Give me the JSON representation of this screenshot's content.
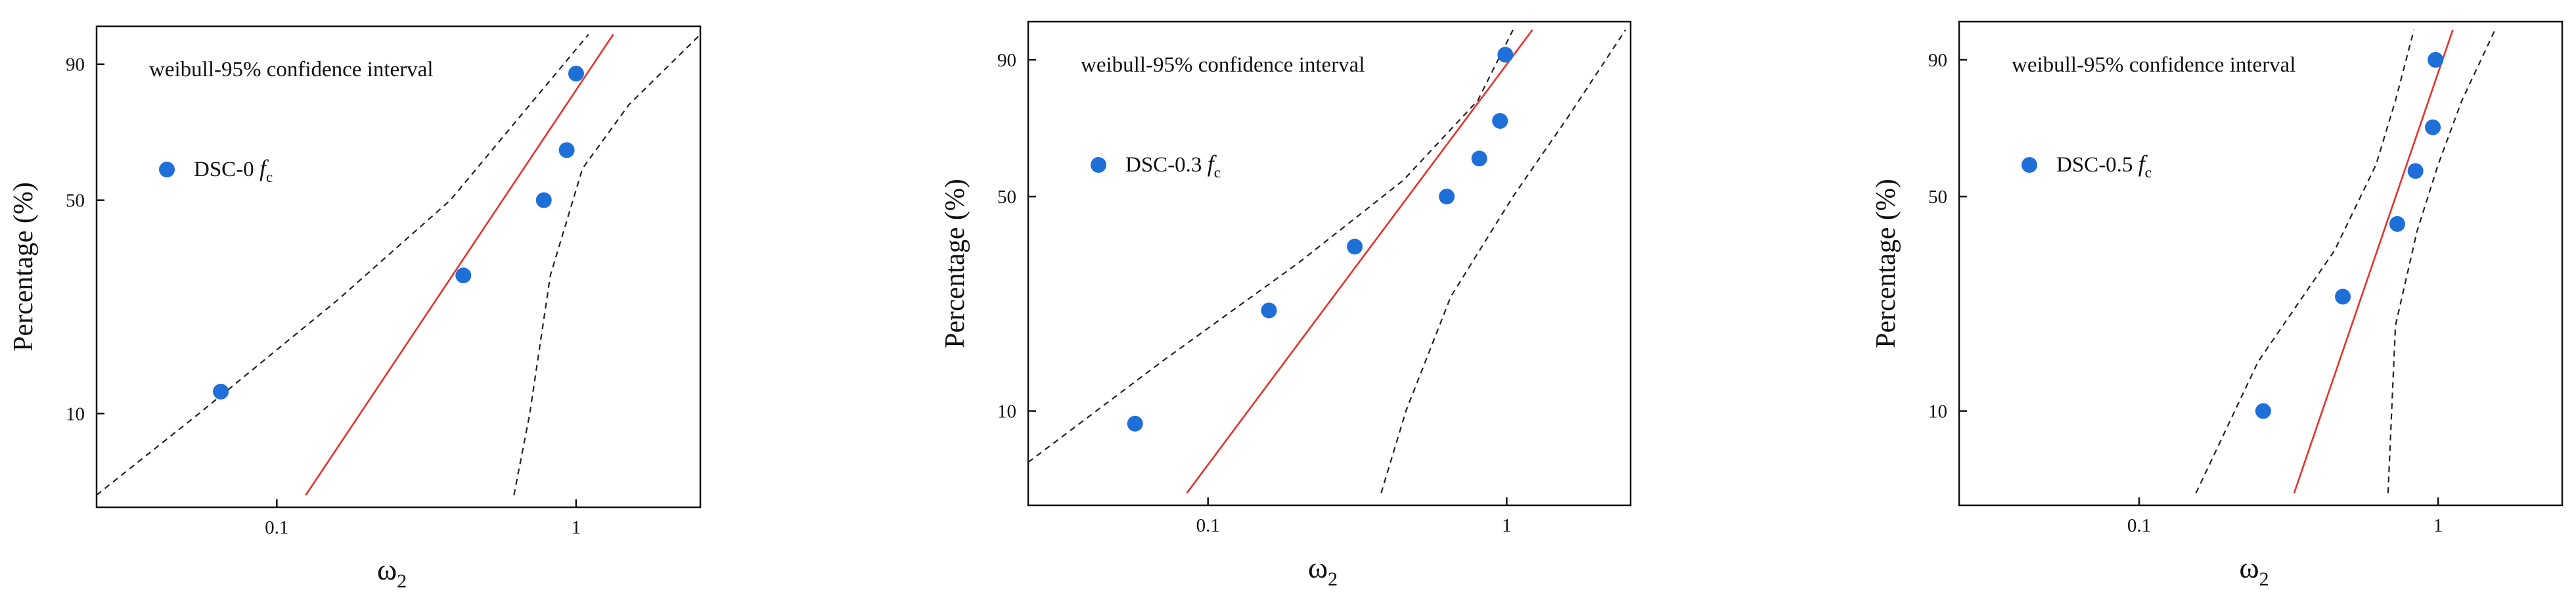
{
  "chart_data": [
    {
      "type": "scatter",
      "title": "",
      "xscale": "log",
      "yscale": "weibull-probability",
      "xlim": [
        0.025,
        2.6
      ],
      "ylim": [
        4.5,
        96
      ],
      "xticks": [
        {
          "value": 0.1,
          "label": "0.1"
        },
        {
          "value": 1,
          "label": "1"
        }
      ],
      "yticks": [
        {
          "value": 10,
          "label": "10"
        },
        {
          "value": 50,
          "label": "50"
        },
        {
          "value": 90,
          "label": "90"
        }
      ],
      "xlabel": {
        "main": "ω",
        "sub": "2"
      },
      "ylabel": "Percentage (%)",
      "annotation": "weibull-95% confidence interval",
      "legend": {
        "prefix": "DSC-0 ",
        "italic": "f",
        "sub": "c",
        "location": "upper-left"
      },
      "colors": {
        "points": "#1f6fd9",
        "fit": "#e8302a",
        "ci": "#222222"
      },
      "points": [
        {
          "x": 0.065,
          "y": 12.0
        },
        {
          "x": 0.42,
          "y": 30.0
        },
        {
          "x": 0.78,
          "y": 50.0
        },
        {
          "x": 0.93,
          "y": 66.0
        },
        {
          "x": 1.0,
          "y": 88.0
        }
      ],
      "fit_line": [
        {
          "x": 0.125,
          "y": 5.0
        },
        {
          "x": 1.33,
          "y": 95.0
        }
      ],
      "ci_lower": [
        {
          "x": 0.025,
          "y": 5.0
        },
        {
          "x": 0.055,
          "y": 10.0
        },
        {
          "x": 0.16,
          "y": 25.0
        },
        {
          "x": 0.38,
          "y": 50.0
        },
        {
          "x": 0.7,
          "y": 80.0
        },
        {
          "x": 1.1,
          "y": 95.0
        }
      ],
      "ci_upper": [
        {
          "x": 0.62,
          "y": 5.0
        },
        {
          "x": 0.7,
          "y": 10.0
        },
        {
          "x": 0.82,
          "y": 30.0
        },
        {
          "x": 1.05,
          "y": 60.0
        },
        {
          "x": 1.5,
          "y": 80.0
        },
        {
          "x": 2.6,
          "y": 95.0
        }
      ]
    },
    {
      "type": "scatter",
      "title": "",
      "xscale": "log",
      "yscale": "weibull-probability",
      "xlim": [
        0.025,
        2.6
      ],
      "ylim": [
        4.5,
        96
      ],
      "xticks": [
        {
          "value": 0.1,
          "label": "0.1"
        },
        {
          "value": 1,
          "label": "1"
        }
      ],
      "yticks": [
        {
          "value": 10,
          "label": "10"
        },
        {
          "value": 50,
          "label": "50"
        },
        {
          "value": 90,
          "label": "90"
        }
      ],
      "xlabel": {
        "main": "ω",
        "sub": "2"
      },
      "ylabel": "Percentage (%)",
      "annotation": "weibull-95% confidence interval",
      "legend": {
        "prefix": "DSC-0.3 ",
        "italic": "f",
        "sub": "c",
        "location": "upper-left"
      },
      "colors": {
        "points": "#1f6fd9",
        "fit": "#e8302a",
        "ci": "#222222"
      },
      "points": [
        {
          "x": 0.057,
          "y": 9.0
        },
        {
          "x": 0.16,
          "y": 22.5
        },
        {
          "x": 0.31,
          "y": 36.0
        },
        {
          "x": 0.63,
          "y": 50.0
        },
        {
          "x": 0.81,
          "y": 62.0
        },
        {
          "x": 0.95,
          "y": 74.0
        },
        {
          "x": 0.99,
          "y": 91.0
        }
      ],
      "fit_line": [
        {
          "x": 0.085,
          "y": 5.0
        },
        {
          "x": 1.22,
          "y": 95.0
        }
      ],
      "ci_lower": [
        {
          "x": 0.025,
          "y": 6.5
        },
        {
          "x": 0.07,
          "y": 15.0
        },
        {
          "x": 0.2,
          "y": 32.0
        },
        {
          "x": 0.45,
          "y": 55.0
        },
        {
          "x": 0.8,
          "y": 80.0
        },
        {
          "x": 1.05,
          "y": 95.0
        }
      ],
      "ci_upper": [
        {
          "x": 0.38,
          "y": 5.0
        },
        {
          "x": 0.46,
          "y": 10.0
        },
        {
          "x": 0.65,
          "y": 25.0
        },
        {
          "x": 1.05,
          "y": 50.0
        },
        {
          "x": 1.6,
          "y": 75.0
        },
        {
          "x": 2.5,
          "y": 95.0
        }
      ]
    },
    {
      "type": "scatter",
      "title": "",
      "xscale": "log",
      "yscale": "weibull-probability",
      "xlim": [
        0.025,
        2.6
      ],
      "ylim": [
        4.5,
        96
      ],
      "xticks": [
        {
          "value": 0.1,
          "label": "0.1"
        },
        {
          "value": 1,
          "label": "1"
        }
      ],
      "yticks": [
        {
          "value": 10,
          "label": "10"
        },
        {
          "value": 50,
          "label": "50"
        },
        {
          "value": 90,
          "label": "90"
        }
      ],
      "xlabel": {
        "main": "ω",
        "sub": "2"
      },
      "ylabel": "Percentage (%)",
      "annotation": "weibull-95% confidence interval",
      "legend": {
        "prefix": "DSC-0.5 ",
        "italic": "f",
        "sub": "c",
        "location": "upper-left"
      },
      "colors": {
        "points": "#1f6fd9",
        "fit": "#e8302a",
        "ci": "#222222"
      },
      "points": [
        {
          "x": 0.26,
          "y": 10.0
        },
        {
          "x": 0.48,
          "y": 25.0
        },
        {
          "x": 0.73,
          "y": 42.0
        },
        {
          "x": 0.84,
          "y": 58.0
        },
        {
          "x": 0.96,
          "y": 72.0
        },
        {
          "x": 0.98,
          "y": 90.0
        }
      ],
      "fit_line": [
        {
          "x": 0.33,
          "y": 5.0
        },
        {
          "x": 1.12,
          "y": 95.0
        }
      ],
      "ci_lower": [
        {
          "x": 0.155,
          "y": 5.0
        },
        {
          "x": 0.25,
          "y": 15.0
        },
        {
          "x": 0.45,
          "y": 35.0
        },
        {
          "x": 0.62,
          "y": 60.0
        },
        {
          "x": 0.72,
          "y": 80.0
        },
        {
          "x": 0.83,
          "y": 95.0
        }
      ],
      "ci_upper": [
        {
          "x": 0.68,
          "y": 5.0
        },
        {
          "x": 0.72,
          "y": 20.0
        },
        {
          "x": 0.85,
          "y": 40.0
        },
        {
          "x": 1.0,
          "y": 60.0
        },
        {
          "x": 1.2,
          "y": 80.0
        },
        {
          "x": 1.55,
          "y": 95.0
        }
      ]
    }
  ]
}
